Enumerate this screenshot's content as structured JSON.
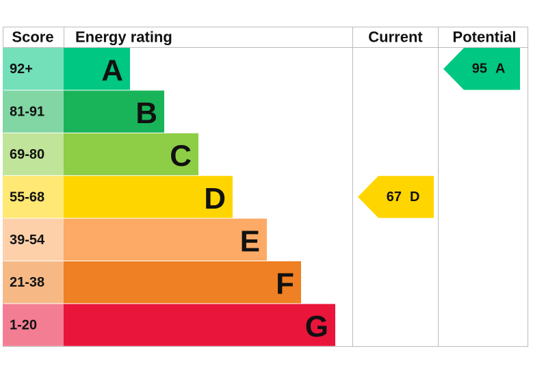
{
  "chart_data": {
    "type": "epc",
    "headers": [
      "Score",
      "Energy rating",
      "Current",
      "Potential"
    ],
    "bands": [
      {
        "score": "92+",
        "letter": "A",
        "color": "#00c781"
      },
      {
        "score": "81-91",
        "letter": "B",
        "color": "#19b459"
      },
      {
        "score": "69-80",
        "letter": "C",
        "color": "#8dce46"
      },
      {
        "score": "55-68",
        "letter": "D",
        "color": "#ffd500"
      },
      {
        "score": "39-54",
        "letter": "E",
        "color": "#fcaa65"
      },
      {
        "score": "21-38",
        "letter": "F",
        "color": "#ef8023"
      },
      {
        "score": "1-20",
        "letter": "G",
        "color": "#e9153b"
      }
    ],
    "current": {
      "value": 67,
      "band": "D"
    },
    "potential": {
      "value": 95,
      "band": "A"
    }
  }
}
